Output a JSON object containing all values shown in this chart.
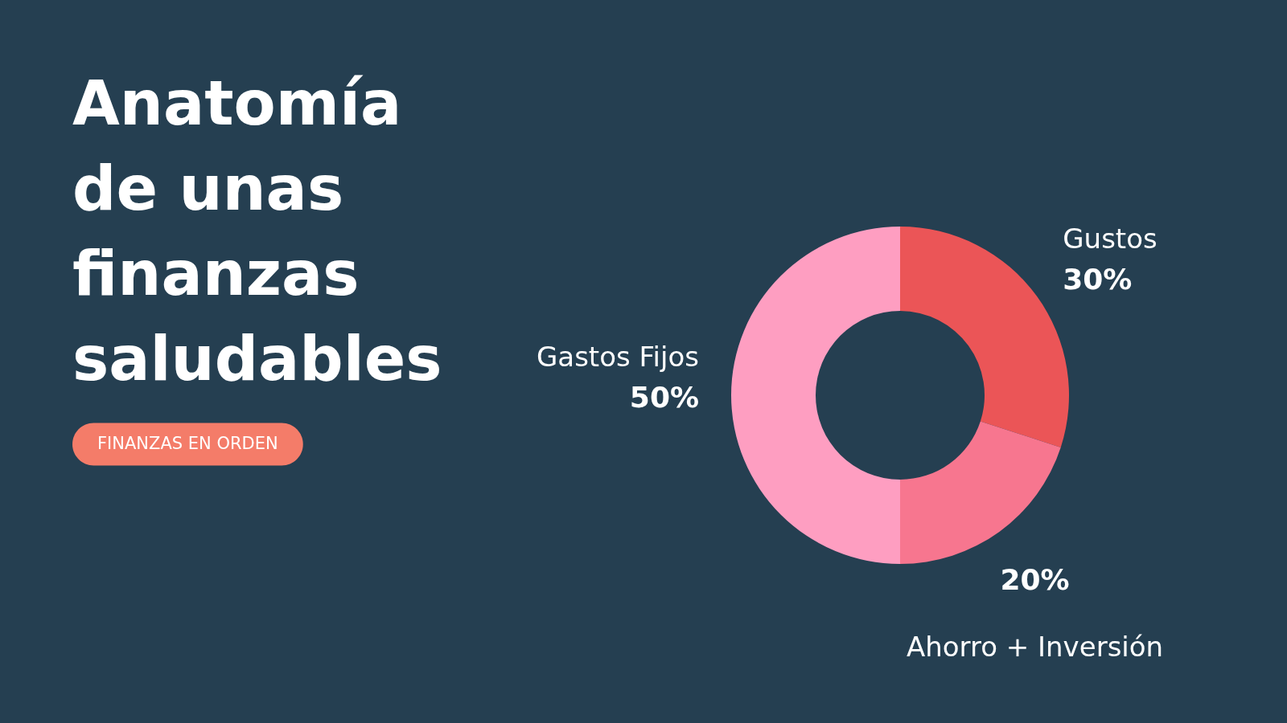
{
  "chart_data": {
    "type": "donut",
    "title": "Anatomía de unas finanzas saludables",
    "subtitle": "FINANZAS EN ORDEN",
    "categories": [
      "Gustos",
      "Ahorro + Inversión",
      "Gastos Fijos"
    ],
    "values": [
      30,
      20,
      50
    ],
    "colors": [
      "#eb5557",
      "#f7768f",
      "#fe9ec1"
    ],
    "value_labels": [
      "30%",
      "20%",
      "50%"
    ]
  }
}
